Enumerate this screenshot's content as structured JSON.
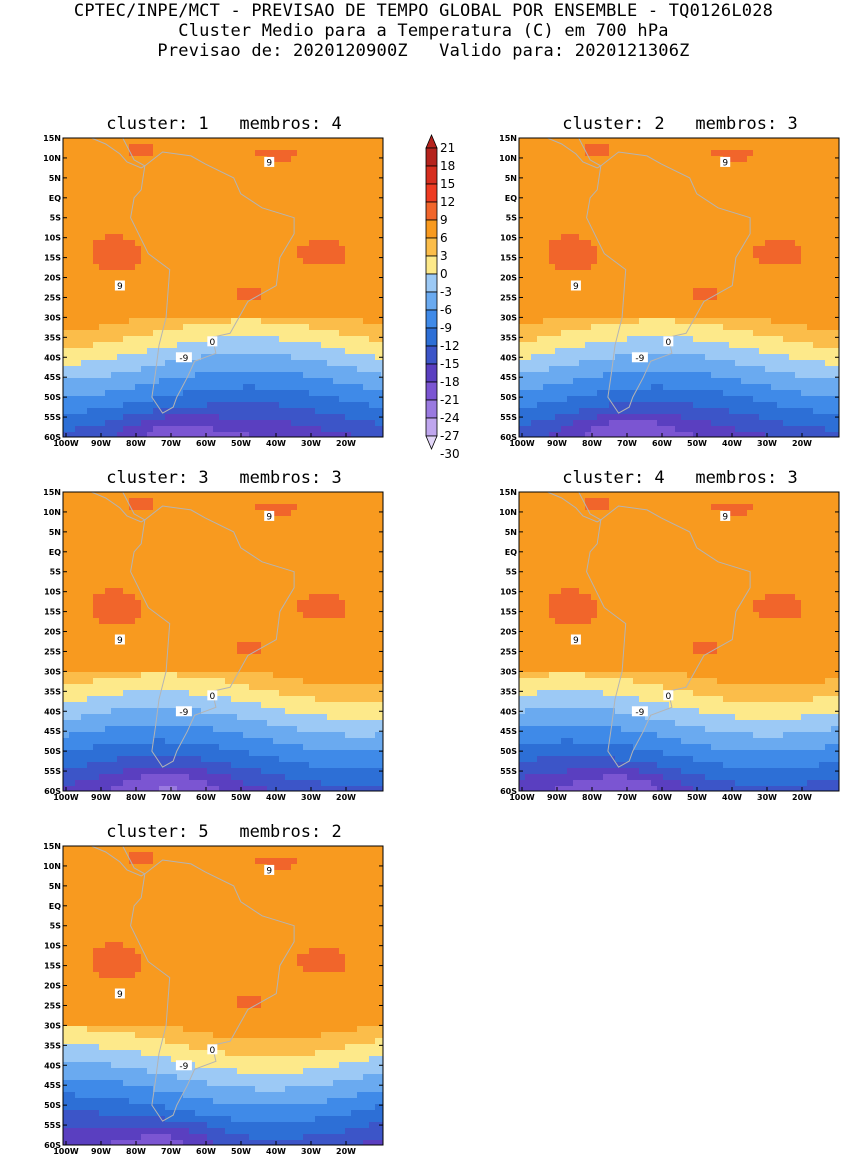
{
  "header": {
    "line1": "CPTEC/INPE/MCT - PREVISAO DE TEMPO GLOBAL POR ENSEMBLE - TQ0126L028",
    "line2": "Cluster Medio para a Temperatura (C) em 700 hPa",
    "line3": "Previsao de: 2020120900Z   Valido para: 2020121306Z"
  },
  "panels": [
    {
      "title": "cluster: 1   membros: 4"
    },
    {
      "title": "cluster: 2   membros: 3"
    },
    {
      "title": "cluster: 3   membros: 3"
    },
    {
      "title": "cluster: 4   membros: 3"
    },
    {
      "title": "cluster: 5   membros: 2"
    }
  ],
  "chart_data": {
    "type": "heatmap",
    "title": "Cluster Medio para a Temperatura (C) em 700 hPa",
    "variable": "Temperature (C) at 700 hPa",
    "x_ticks": [
      "100W",
      "90W",
      "80W",
      "70W",
      "60W",
      "50W",
      "40W",
      "30W",
      "20W"
    ],
    "y_ticks": [
      "15N",
      "10N",
      "5N",
      "EQ",
      "5S",
      "10S",
      "15S",
      "20S",
      "25S",
      "30S",
      "35S",
      "40S",
      "45S",
      "50S",
      "55S",
      "60S"
    ],
    "xlim": [
      -100,
      -10
    ],
    "ylim": [
      -60,
      15
    ],
    "colorbar": {
      "labels": [
        "21",
        "18",
        "15",
        "12",
        "9",
        "6",
        "3",
        "0",
        "-3",
        "-6",
        "-9",
        "-12",
        "-15",
        "-18",
        "-21",
        "-24",
        "-27",
        "-30"
      ],
      "bins": [
        {
          "lo": 18,
          "hi": 21,
          "color": "#b5231d"
        },
        {
          "lo": 15,
          "hi": 18,
          "color": "#d62e1f"
        },
        {
          "lo": 12,
          "hi": 15,
          "color": "#ee3b22"
        },
        {
          "lo": 9,
          "hi": 12,
          "color": "#f1652b"
        },
        {
          "lo": 6,
          "hi": 9,
          "color": "#f89a1f"
        },
        {
          "lo": 3,
          "hi": 6,
          "color": "#fbbd4a"
        },
        {
          "lo": 0,
          "hi": 3,
          "color": "#fde98a"
        },
        {
          "lo": -3,
          "hi": 0,
          "color": "#9cc9f5"
        },
        {
          "lo": -6,
          "hi": -3,
          "color": "#6aaaf0"
        },
        {
          "lo": -9,
          "hi": -6,
          "color": "#3f8ae8"
        },
        {
          "lo": -12,
          "hi": -9,
          "color": "#2d6fd6"
        },
        {
          "lo": -15,
          "hi": -12,
          "color": "#3c55c8"
        },
        {
          "lo": -18,
          "hi": -15,
          "color": "#5a3fc0"
        },
        {
          "lo": -21,
          "hi": -18,
          "color": "#7b55d2"
        },
        {
          "lo": -24,
          "hi": -21,
          "color": "#9a7ae0"
        },
        {
          "lo": -27,
          "hi": -24,
          "color": "#bfa6ee"
        },
        {
          "lo": -30,
          "hi": -27,
          "color": "#e2d6f8"
        }
      ]
    },
    "contour_labels": [
      "9",
      "0",
      "-9"
    ]
  }
}
